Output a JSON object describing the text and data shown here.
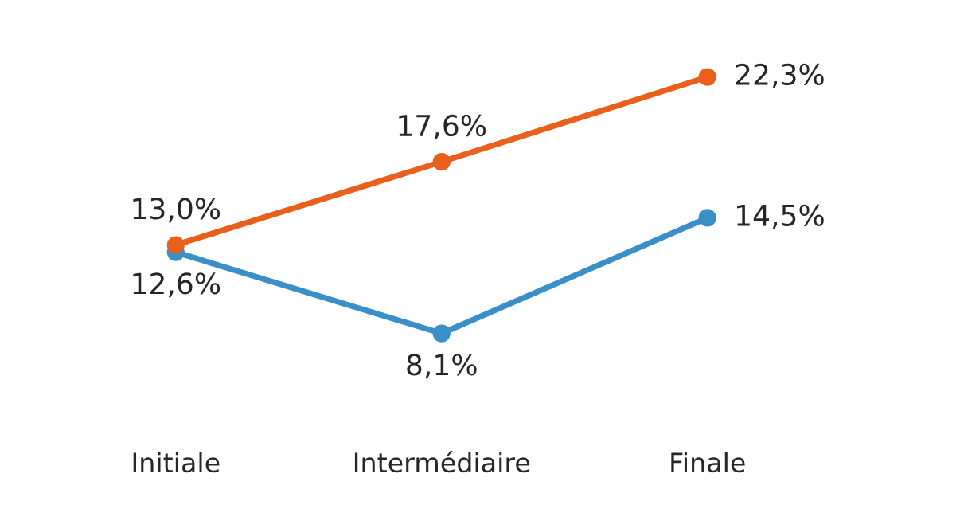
{
  "chart_data": {
    "type": "line",
    "categories": [
      "Initiale",
      "Intermédiaire",
      "Finale"
    ],
    "series": [
      {
        "color": "#3a8fc8",
        "values": [
          12.6,
          8.1,
          14.5
        ],
        "value_labels": [
          "12,6%",
          "8,1%",
          "14,5%"
        ]
      },
      {
        "color": "#e8601c",
        "values": [
          13.0,
          17.6,
          22.3
        ],
        "value_labels": [
          "13,0%",
          "17,6%",
          "22,3%"
        ]
      }
    ],
    "marker": "circle",
    "line_style": "solid"
  }
}
